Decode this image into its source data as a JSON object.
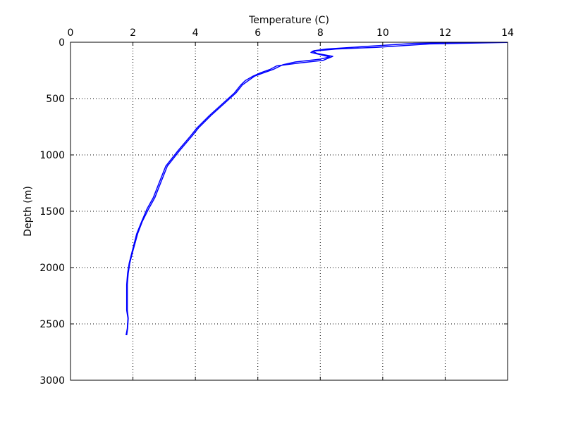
{
  "chart_data": {
    "type": "line",
    "title": "",
    "xlabel": "Temperature (C)",
    "ylabel": "Depth (m)",
    "x_axis_position": "top",
    "y_inverted": true,
    "xlim": [
      0,
      14
    ],
    "ylim": [
      0,
      3000
    ],
    "xticks": [
      0,
      2,
      4,
      6,
      8,
      10,
      12,
      14
    ],
    "yticks": [
      0,
      500,
      1000,
      1500,
      2000,
      2500,
      3000
    ],
    "xtick_labels": [
      "0",
      "2",
      "4",
      "6",
      "8",
      "10",
      "12",
      "14"
    ],
    "ytick_labels": [
      "0",
      "500",
      "1000",
      "1500",
      "2000",
      "2500",
      "3000"
    ],
    "grid": true,
    "legend": "none",
    "series": [
      {
        "color": "#0000ff",
        "profile": "down",
        "points": [
          [
            13.0,
            2
          ],
          [
            11.0,
            10
          ],
          [
            9.3,
            40
          ],
          [
            8.2,
            60
          ],
          [
            7.8,
            75
          ],
          [
            7.7,
            90
          ],
          [
            8.0,
            110
          ],
          [
            8.3,
            130
          ],
          [
            8.0,
            150
          ],
          [
            7.2,
            175
          ],
          [
            6.8,
            200
          ],
          [
            6.5,
            240
          ],
          [
            6.2,
            270
          ],
          [
            5.9,
            300
          ],
          [
            5.7,
            340
          ],
          [
            5.5,
            380
          ],
          [
            5.3,
            450
          ],
          [
            4.9,
            550
          ],
          [
            4.5,
            650
          ],
          [
            4.1,
            760
          ],
          [
            3.9,
            830
          ],
          [
            3.5,
            960
          ],
          [
            3.1,
            1100
          ],
          [
            2.9,
            1240
          ],
          [
            2.7,
            1380
          ],
          [
            2.5,
            1480
          ],
          [
            2.3,
            1590
          ],
          [
            2.15,
            1700
          ],
          [
            2.0,
            1850
          ],
          [
            1.9,
            1960
          ],
          [
            1.85,
            2050
          ],
          [
            1.82,
            2150
          ],
          [
            1.82,
            2250
          ],
          [
            1.82,
            2380
          ],
          [
            1.85,
            2450
          ],
          [
            1.83,
            2540
          ],
          [
            1.8,
            2600
          ]
        ]
      },
      {
        "color": "#0000ff",
        "profile": "up",
        "points": [
          [
            1.78,
            2600
          ],
          [
            1.82,
            2540
          ],
          [
            1.84,
            2450
          ],
          [
            1.8,
            2380
          ],
          [
            1.8,
            2250
          ],
          [
            1.8,
            2150
          ],
          [
            1.83,
            2050
          ],
          [
            1.88,
            1960
          ],
          [
            1.98,
            1850
          ],
          [
            2.12,
            1700
          ],
          [
            2.28,
            1590
          ],
          [
            2.45,
            1480
          ],
          [
            2.65,
            1380
          ],
          [
            2.85,
            1240
          ],
          [
            3.05,
            1100
          ],
          [
            3.45,
            960
          ],
          [
            3.85,
            830
          ],
          [
            4.05,
            760
          ],
          [
            4.45,
            650
          ],
          [
            4.85,
            550
          ],
          [
            5.25,
            450
          ],
          [
            5.45,
            380
          ],
          [
            5.6,
            340
          ],
          [
            5.85,
            300
          ],
          [
            6.1,
            270
          ],
          [
            6.4,
            240
          ],
          [
            6.6,
            210
          ],
          [
            7.3,
            185
          ],
          [
            8.1,
            160
          ],
          [
            8.4,
            125
          ],
          [
            7.9,
            100
          ],
          [
            7.75,
            80
          ],
          [
            8.5,
            60
          ],
          [
            9.8,
            45
          ],
          [
            11.5,
            15
          ],
          [
            14.0,
            2
          ]
        ]
      }
    ]
  }
}
